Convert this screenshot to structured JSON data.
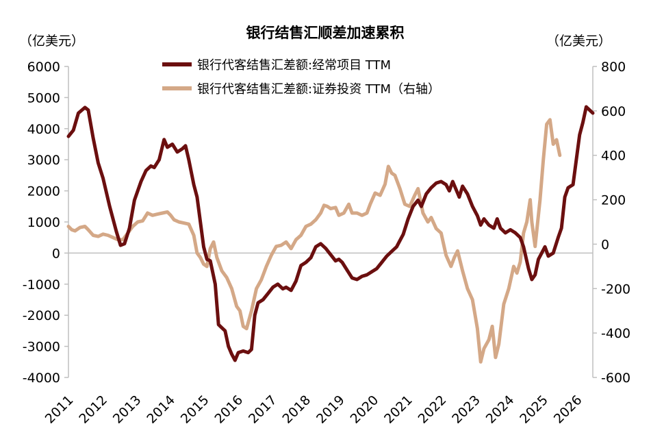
{
  "chart_data": {
    "type": "line",
    "title": "银行结售汇顺差加速累积",
    "ylabel_left": "（亿美元）",
    "ylabel_right": "（亿美元）",
    "x_tick_labels": [
      "2011",
      "2012",
      "2013",
      "2014",
      "2015",
      "2016",
      "2017",
      "2018",
      "2019",
      "2020",
      "2021",
      "2022",
      "2023",
      "2024",
      "2025",
      "2026"
    ],
    "ylim_left": [
      -4000,
      6000
    ],
    "yticks_left": [
      "6000",
      "5000",
      "4000",
      "3000",
      "2000",
      "1000",
      "0",
      "-1000",
      "-2000",
      "-3000",
      "-4000"
    ],
    "ylim_right": [
      -600,
      800
    ],
    "yticks_right": [
      "800",
      "600",
      "400",
      "200",
      "0",
      "-200",
      "-400",
      "-600"
    ],
    "legend_position": "top-center",
    "grid": false,
    "colors": {
      "series1": "#6b0f0f",
      "series2": "#d4a887"
    },
    "series": [
      {
        "name": "银行代客结售汇差额:经常项目 TTM",
        "axis": "left",
        "points": [
          [
            2011.0,
            3750
          ],
          [
            2011.15,
            3950
          ],
          [
            2011.3,
            4500
          ],
          [
            2011.5,
            4680
          ],
          [
            2011.6,
            4600
          ],
          [
            2011.75,
            3700
          ],
          [
            2011.9,
            2900
          ],
          [
            2012.05,
            2400
          ],
          [
            2012.25,
            1500
          ],
          [
            2012.45,
            700
          ],
          [
            2012.58,
            250
          ],
          [
            2012.7,
            300
          ],
          [
            2012.85,
            800
          ],
          [
            2013.0,
            1700
          ],
          [
            2013.2,
            2300
          ],
          [
            2013.35,
            2650
          ],
          [
            2013.5,
            2800
          ],
          [
            2013.6,
            2750
          ],
          [
            2013.75,
            3000
          ],
          [
            2013.9,
            3650
          ],
          [
            2014.0,
            3400
          ],
          [
            2014.15,
            3500
          ],
          [
            2014.3,
            3250
          ],
          [
            2014.45,
            3350
          ],
          [
            2014.55,
            3450
          ],
          [
            2014.65,
            3000
          ],
          [
            2014.8,
            2200
          ],
          [
            2014.9,
            1800
          ],
          [
            2015.0,
            1000
          ],
          [
            2015.1,
            200
          ],
          [
            2015.2,
            -200
          ],
          [
            2015.3,
            -250
          ],
          [
            2015.45,
            -1000
          ],
          [
            2015.55,
            -2300
          ],
          [
            2015.65,
            -2400
          ],
          [
            2015.75,
            -2500
          ],
          [
            2015.85,
            -3000
          ],
          [
            2015.95,
            -3250
          ],
          [
            2016.05,
            -3450
          ],
          [
            2016.15,
            -3200
          ],
          [
            2016.3,
            -3150
          ],
          [
            2016.45,
            -3200
          ],
          [
            2016.55,
            -3100
          ],
          [
            2016.65,
            -2000
          ],
          [
            2016.75,
            -1600
          ],
          [
            2016.9,
            -1500
          ],
          [
            2017.05,
            -1300
          ],
          [
            2017.2,
            -1100
          ],
          [
            2017.35,
            -1000
          ],
          [
            2017.5,
            -1150
          ],
          [
            2017.6,
            -1100
          ],
          [
            2017.75,
            -1200
          ],
          [
            2017.9,
            -900
          ],
          [
            2018.05,
            -400
          ],
          [
            2018.2,
            -300
          ],
          [
            2018.35,
            -150
          ],
          [
            2018.5,
            200
          ],
          [
            2018.65,
            300
          ],
          [
            2018.8,
            150
          ],
          [
            2018.95,
            -50
          ],
          [
            2019.1,
            -250
          ],
          [
            2019.2,
            -200
          ],
          [
            2019.3,
            -300
          ],
          [
            2019.45,
            -550
          ],
          [
            2019.6,
            -800
          ],
          [
            2019.75,
            -850
          ],
          [
            2019.9,
            -750
          ],
          [
            2020.05,
            -700
          ],
          [
            2020.2,
            -600
          ],
          [
            2020.35,
            -500
          ],
          [
            2020.5,
            -300
          ],
          [
            2020.65,
            -100
          ],
          [
            2020.8,
            50
          ],
          [
            2020.95,
            200
          ],
          [
            2021.05,
            400
          ],
          [
            2021.15,
            600
          ],
          [
            2021.3,
            1100
          ],
          [
            2021.45,
            1500
          ],
          [
            2021.6,
            1700
          ],
          [
            2021.7,
            1500
          ],
          [
            2021.85,
            1900
          ],
          [
            2022.0,
            2100
          ],
          [
            2022.15,
            2250
          ],
          [
            2022.3,
            2300
          ],
          [
            2022.45,
            2200
          ],
          [
            2022.55,
            2000
          ],
          [
            2022.65,
            2300
          ],
          [
            2022.75,
            2050
          ],
          [
            2022.85,
            1800
          ],
          [
            2022.95,
            2150
          ],
          [
            2023.1,
            1900
          ],
          [
            2023.25,
            1500
          ],
          [
            2023.4,
            1200
          ],
          [
            2023.5,
            900
          ],
          [
            2023.6,
            1100
          ],
          [
            2023.75,
            900
          ],
          [
            2023.9,
            800
          ],
          [
            2024.0,
            1100
          ],
          [
            2024.1,
            800
          ],
          [
            2024.25,
            650
          ],
          [
            2024.4,
            750
          ],
          [
            2024.55,
            650
          ],
          [
            2024.7,
            500
          ],
          [
            2024.8,
            200
          ],
          [
            2024.95,
            -500
          ],
          [
            2025.05,
            -850
          ],
          [
            2025.15,
            -700
          ],
          [
            2025.25,
            -200
          ],
          [
            2025.35,
            0
          ],
          [
            2025.45,
            200
          ],
          [
            2025.55,
            -100
          ],
          [
            2025.7,
            0
          ],
          [
            2025.85,
            500
          ],
          [
            2025.95,
            800
          ],
          [
            2026.05,
            1800
          ],
          [
            2026.15,
            2100
          ],
          [
            2026.3,
            2200
          ],
          [
            2026.4,
            3000
          ],
          [
            2026.5,
            3800
          ],
          [
            2026.6,
            4200
          ],
          [
            2026.7,
            4700
          ],
          [
            2026.8,
            4600
          ],
          [
            2026.9,
            4500
          ]
        ]
      },
      {
        "name": "银行代客结售汇差额:证券投资 TTM（右轴）",
        "axis": "right",
        "points": [
          [
            2011.0,
            80
          ],
          [
            2011.1,
            65
          ],
          [
            2011.2,
            60
          ],
          [
            2011.35,
            75
          ],
          [
            2011.5,
            80
          ],
          [
            2011.6,
            65
          ],
          [
            2011.75,
            40
          ],
          [
            2011.9,
            35
          ],
          [
            2012.05,
            45
          ],
          [
            2012.2,
            40
          ],
          [
            2012.35,
            30
          ],
          [
            2012.5,
            20
          ],
          [
            2012.65,
            20
          ],
          [
            2012.8,
            50
          ],
          [
            2012.95,
            80
          ],
          [
            2013.1,
            100
          ],
          [
            2013.25,
            105
          ],
          [
            2013.4,
            140
          ],
          [
            2013.55,
            130
          ],
          [
            2013.7,
            135
          ],
          [
            2013.85,
            140
          ],
          [
            2014.0,
            145
          ],
          [
            2014.1,
            130
          ],
          [
            2014.2,
            110
          ],
          [
            2014.35,
            100
          ],
          [
            2014.5,
            95
          ],
          [
            2014.65,
            90
          ],
          [
            2014.8,
            40
          ],
          [
            2014.9,
            -40
          ],
          [
            2015.0,
            -60
          ],
          [
            2015.1,
            -90
          ],
          [
            2015.2,
            -100
          ],
          [
            2015.3,
            -20
          ],
          [
            2015.4,
            10
          ],
          [
            2015.5,
            -60
          ],
          [
            2015.65,
            -120
          ],
          [
            2015.8,
            -150
          ],
          [
            2015.95,
            -200
          ],
          [
            2016.1,
            -280
          ],
          [
            2016.2,
            -300
          ],
          [
            2016.3,
            -370
          ],
          [
            2016.4,
            -380
          ],
          [
            2016.55,
            -300
          ],
          [
            2016.7,
            -200
          ],
          [
            2016.85,
            -160
          ],
          [
            2017.0,
            -100
          ],
          [
            2017.15,
            -50
          ],
          [
            2017.3,
            -10
          ],
          [
            2017.45,
            -5
          ],
          [
            2017.6,
            10
          ],
          [
            2017.75,
            -20
          ],
          [
            2017.9,
            20
          ],
          [
            2018.05,
            40
          ],
          [
            2018.2,
            80
          ],
          [
            2018.35,
            90
          ],
          [
            2018.5,
            110
          ],
          [
            2018.65,
            140
          ],
          [
            2018.75,
            175
          ],
          [
            2018.85,
            170
          ],
          [
            2018.95,
            160
          ],
          [
            2019.1,
            165
          ],
          [
            2019.2,
            130
          ],
          [
            2019.35,
            140
          ],
          [
            2019.5,
            180
          ],
          [
            2019.6,
            140
          ],
          [
            2019.75,
            140
          ],
          [
            2019.9,
            130
          ],
          [
            2020.05,
            140
          ],
          [
            2020.15,
            180
          ],
          [
            2020.3,
            230
          ],
          [
            2020.45,
            220
          ],
          [
            2020.6,
            270
          ],
          [
            2020.7,
            350
          ],
          [
            2020.8,
            320
          ],
          [
            2020.9,
            310
          ],
          [
            2021.05,
            250
          ],
          [
            2021.2,
            180
          ],
          [
            2021.35,
            170
          ],
          [
            2021.5,
            220
          ],
          [
            2021.6,
            250
          ],
          [
            2021.75,
            140
          ],
          [
            2021.9,
            100
          ],
          [
            2022.0,
            120
          ],
          [
            2022.15,
            70
          ],
          [
            2022.3,
            50
          ],
          [
            2022.45,
            -50
          ],
          [
            2022.6,
            -100
          ],
          [
            2022.7,
            -60
          ],
          [
            2022.8,
            -30
          ],
          [
            2022.95,
            -120
          ],
          [
            2023.1,
            -200
          ],
          [
            2023.25,
            -250
          ],
          [
            2023.4,
            -380
          ],
          [
            2023.5,
            -530
          ],
          [
            2023.6,
            -470
          ],
          [
            2023.75,
            -430
          ],
          [
            2023.85,
            -370
          ],
          [
            2023.95,
            -510
          ],
          [
            2024.05,
            -450
          ],
          [
            2024.2,
            -270
          ],
          [
            2024.35,
            -200
          ],
          [
            2024.5,
            -100
          ],
          [
            2024.6,
            -130
          ],
          [
            2024.7,
            -80
          ],
          [
            2024.8,
            50
          ],
          [
            2024.9,
            100
          ],
          [
            2025.0,
            200
          ],
          [
            2025.05,
            100
          ],
          [
            2025.15,
            -10
          ],
          [
            2025.3,
            200
          ],
          [
            2025.4,
            380
          ],
          [
            2025.5,
            540
          ],
          [
            2025.6,
            560
          ],
          [
            2025.7,
            450
          ],
          [
            2025.8,
            470
          ],
          [
            2025.9,
            400
          ]
        ]
      }
    ]
  }
}
